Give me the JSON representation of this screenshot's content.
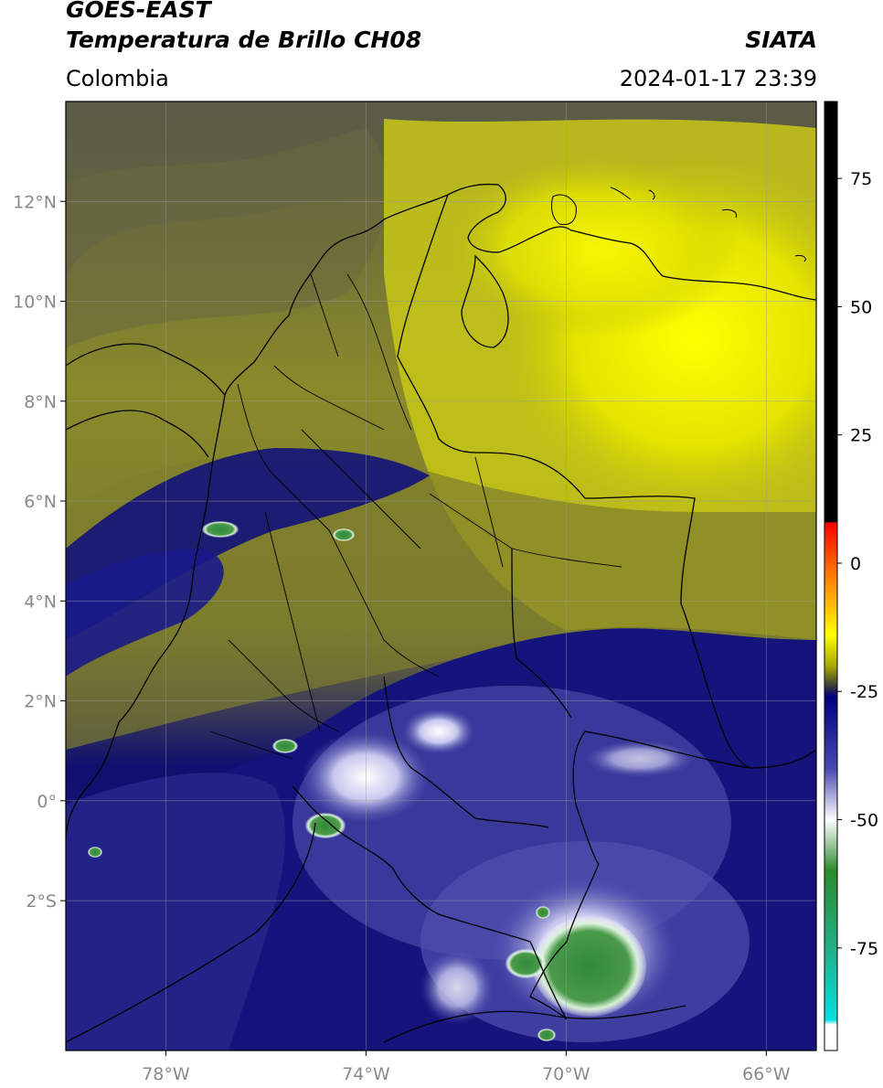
{
  "header": {
    "satellite": "GOES-EAST",
    "product": "Temperatura de Brillo CH08",
    "region": "Colombia",
    "agency": "SIATA",
    "datetime": "2024-01-17 23:39"
  },
  "map": {
    "lon_range": [
      -80,
      -65
    ],
    "lat_range": [
      -5,
      14
    ],
    "lat_ticks": [
      {
        "value": 12,
        "label": "12°N"
      },
      {
        "value": 10,
        "label": "10°N"
      },
      {
        "value": 8,
        "label": "8°N"
      },
      {
        "value": 6,
        "label": "6°N"
      },
      {
        "value": 4,
        "label": "4°N"
      },
      {
        "value": 2,
        "label": "2°N"
      },
      {
        "value": 0,
        "label": "0°"
      },
      {
        "value": -2,
        "label": "2°S"
      }
    ],
    "lon_ticks": [
      {
        "value": -78,
        "label": "78°W"
      },
      {
        "value": -74,
        "label": "74°W"
      },
      {
        "value": -70,
        "label": "70°W"
      },
      {
        "value": -66,
        "label": "66°W"
      }
    ],
    "grid": true
  },
  "colorbar": {
    "range": [
      -95,
      90
    ],
    "ticks": [
      {
        "value": 75,
        "label": "75"
      },
      {
        "value": 50,
        "label": "50"
      },
      {
        "value": 25,
        "label": "25"
      },
      {
        "value": 0,
        "label": "0"
      },
      {
        "value": -25,
        "label": "-25"
      },
      {
        "value": -50,
        "label": "-50"
      },
      {
        "value": -75,
        "label": "-75"
      }
    ],
    "stops": [
      {
        "value": 90,
        "color": "#000000"
      },
      {
        "value": 8,
        "color": "#000000"
      },
      {
        "value": 7.9,
        "color": "#ff0000"
      },
      {
        "value": -5,
        "color": "#ff9900"
      },
      {
        "value": -14,
        "color": "#ffff00"
      },
      {
        "value": -20,
        "color": "#a8a800"
      },
      {
        "value": -24,
        "color": "#3a3a3a"
      },
      {
        "value": -26,
        "color": "#000080"
      },
      {
        "value": -40,
        "color": "#4848b0"
      },
      {
        "value": -50,
        "color": "#ffffff"
      },
      {
        "value": -60,
        "color": "#2c8a2c"
      },
      {
        "value": -75,
        "color": "#22b088"
      },
      {
        "value": -89,
        "color": "#00e0e0"
      },
      {
        "value": -90,
        "color": "#ffffff"
      },
      {
        "value": -95,
        "color": "#ffffff"
      }
    ]
  },
  "colors": {
    "deep_cloud_blue": "#101080",
    "cold_top_white": "#e8e8f6",
    "very_cold_green": "#3d8a45",
    "dry_yellow": "#e8e800",
    "olive": "#8a8a25",
    "grey": "#4e4e48"
  }
}
